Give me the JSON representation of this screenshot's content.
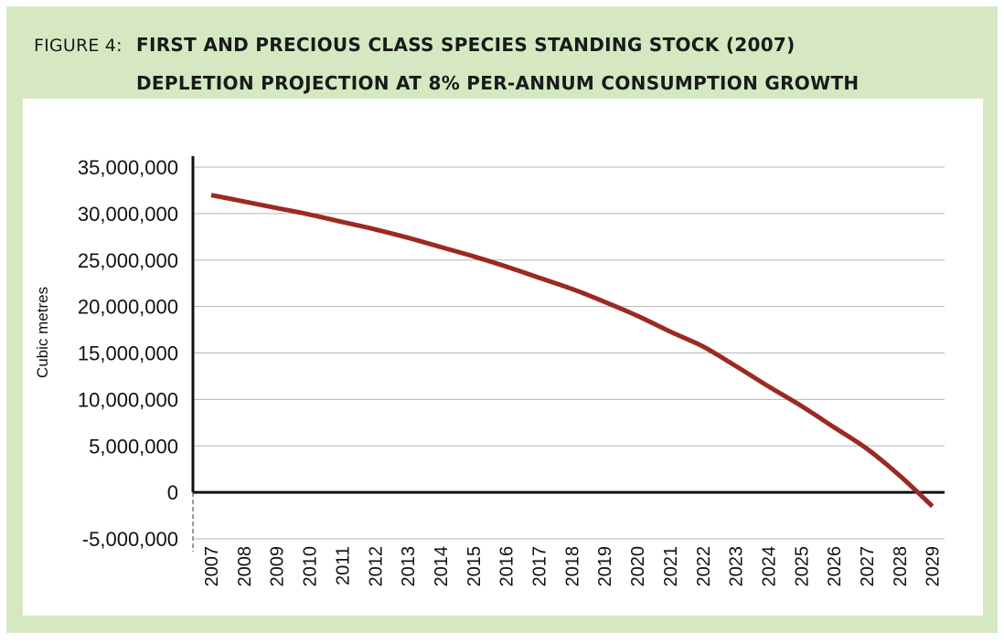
{
  "figure": {
    "label": "FIGURE 4:",
    "title_line1": "FIRST AND PRECIOUS CLASS SPECIES STANDING STOCK (2007)",
    "title_line2": "DEPLETION PROJECTION AT 8% PER-ANNUM CONSUMPTION GROWTH"
  },
  "colors": {
    "frame_background": "#d6e8c2",
    "panel_background": "#ffffff",
    "series_line": "#9b2a22",
    "gridline": "#b5b5b5",
    "axis": "#111111"
  },
  "chart_data": {
    "type": "line",
    "title": "FIRST AND PRECIOUS CLASS SPECIES STANDING STOCK (2007) DEPLETION PROJECTION AT 8% PER-ANNUM CONSUMPTION GROWTH",
    "xlabel": "",
    "ylabel": "Cubic metres",
    "ylim": [
      -5000000,
      35000000
    ],
    "grid": true,
    "legend": "none",
    "y_ticks": [
      -5000000,
      0,
      5000000,
      10000000,
      15000000,
      20000000,
      25000000,
      30000000,
      35000000
    ],
    "y_tick_labels": [
      "-5,000,000",
      "0",
      "5,000,000",
      "10,000,000",
      "15,000,000",
      "20,000,000",
      "25,000,000",
      "30,000,000",
      "35,000,000"
    ],
    "categories": [
      "2007",
      "2008",
      "2009",
      "2010",
      "2011",
      "2012",
      "2013",
      "2014",
      "2015",
      "2016",
      "2017",
      "2018",
      "2019",
      "2020",
      "2021",
      "2022",
      "2023",
      "2024",
      "2025",
      "2026",
      "2027",
      "2028",
      "2029"
    ],
    "series": [
      {
        "values": [
          32000000,
          31300000,
          30600000,
          29900000,
          29100000,
          28300000,
          27400000,
          26400000,
          25400000,
          24300000,
          23100000,
          21900000,
          20500000,
          19000000,
          17300000,
          15700000,
          13600000,
          11400000,
          9300000,
          7000000,
          4700000,
          1800000,
          -1500000
        ]
      }
    ]
  }
}
